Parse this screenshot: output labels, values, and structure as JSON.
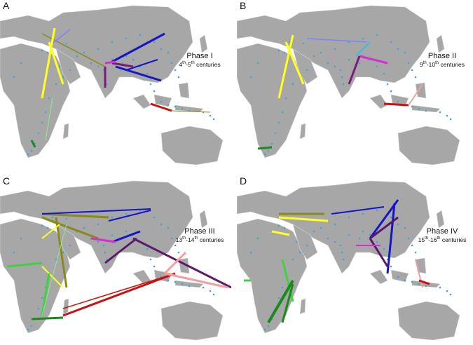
{
  "colors": {
    "land": "#a7a7a7",
    "border": "#d9d9d9",
    "ocean": "#ffffff",
    "site_dot": "#3aa6d6"
  },
  "panels": [
    {
      "letter": "A",
      "phase": "Phase I",
      "century_start": "4",
      "century_end": "5",
      "suffix": "th",
      "unit": "centuries"
    },
    {
      "letter": "B",
      "phase": "Phase II",
      "century_start": "9",
      "century_end": "10",
      "suffix": "th",
      "unit": "centuries"
    },
    {
      "letter": "C",
      "phase": "Phase III",
      "century_start": "13",
      "century_end": "14",
      "suffix": "th",
      "unit": "centuries"
    },
    {
      "letter": "D",
      "phase": "Phase IV",
      "century_start": "15",
      "century_end": "16",
      "suffix": "th",
      "unit": "centuries"
    }
  ],
  "icons": [
    "map-panel",
    "migration-arrow",
    "site-dot"
  ]
}
